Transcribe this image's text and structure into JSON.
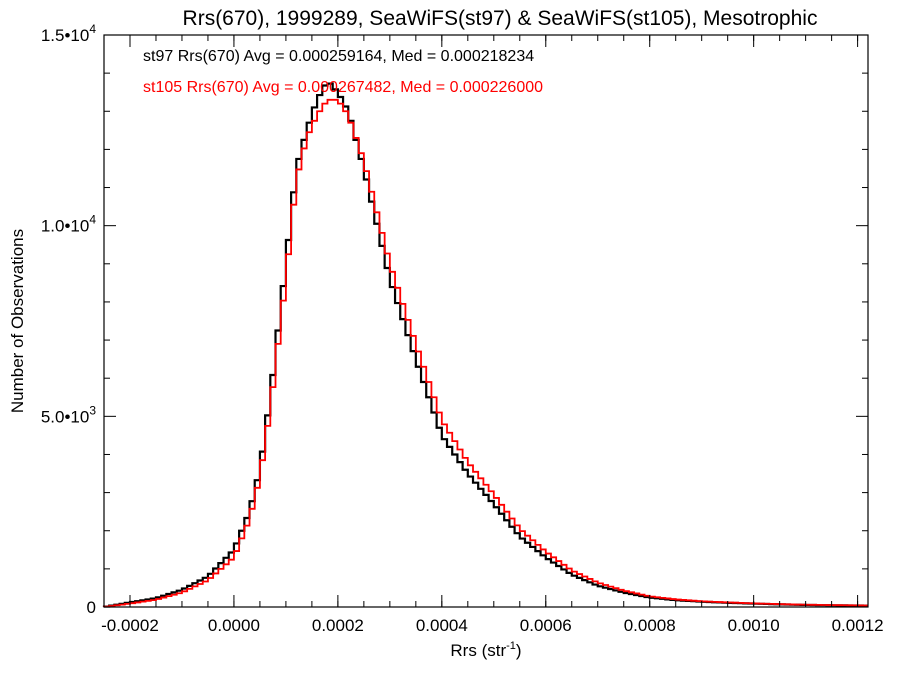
{
  "chart_data": {
    "type": "histogram",
    "title": "Rrs(670), 1999289, SeaWiFS(st97) & SeaWiFS(st105), Mesotrophic",
    "xlabel_main": "Rrs (str",
    "xlabel_sup": "-1",
    "xlabel_end": ")",
    "ylabel": "Number of Observations",
    "xlim": [
      -0.00025,
      0.00122
    ],
    "ylim": [
      0,
      15000
    ],
    "grid": false,
    "x_ticks": [
      {
        "value": -0.0002,
        "label": "-0.0002"
      },
      {
        "value": 0.0,
        "label": "0.0000"
      },
      {
        "value": 0.0002,
        "label": "0.0002"
      },
      {
        "value": 0.0004,
        "label": "0.0004"
      },
      {
        "value": 0.0006,
        "label": "0.0006"
      },
      {
        "value": 0.0008,
        "label": "0.0008"
      },
      {
        "value": 0.001,
        "label": "0.0010"
      },
      {
        "value": 0.0012,
        "label": "0.0012"
      }
    ],
    "y_ticks": [
      {
        "value": 0,
        "base": "0",
        "exp": ""
      },
      {
        "value": 5000,
        "base": "5.0•10",
        "exp": "3"
      },
      {
        "value": 10000,
        "base": "1.0•10",
        "exp": "4"
      },
      {
        "value": 15000,
        "base": "1.5•10",
        "exp": "4"
      }
    ],
    "annotations": [
      {
        "text": "st97 Rrs(670) Avg = 0.000259164, Med = 0.000218234",
        "color": "#000000"
      },
      {
        "text": "st105 Rrs(670) Avg = 0.000267482, Med = 0.000226000",
        "color": "#ff0000"
      }
    ],
    "bin_width": 1e-05,
    "series": [
      {
        "name": "st97",
        "color": "#000000",
        "points": [
          [
            -0.00025,
            0
          ],
          [
            -0.0002,
            120
          ],
          [
            -0.00015,
            230
          ],
          [
            -0.0001,
            450
          ],
          [
            -5e-05,
            800
          ],
          [
            0.0,
            1500
          ],
          [
            3e-05,
            2500
          ],
          [
            5e-05,
            3600
          ],
          [
            7e-05,
            5500
          ],
          [
            0.0001,
            9000
          ],
          [
            0.00012,
            11500
          ],
          [
            0.00014,
            12500
          ],
          [
            0.00016,
            13300
          ],
          [
            0.00018,
            13800
          ],
          [
            0.0002,
            13500
          ],
          [
            0.00022,
            13000
          ],
          [
            0.00025,
            11500
          ],
          [
            0.0003,
            8600
          ],
          [
            0.00035,
            6500
          ],
          [
            0.0004,
            4500
          ],
          [
            0.00045,
            3500
          ],
          [
            0.0005,
            2700
          ],
          [
            0.00055,
            1850
          ],
          [
            0.0006,
            1300
          ],
          [
            0.00065,
            850
          ],
          [
            0.0007,
            560
          ],
          [
            0.00075,
            380
          ],
          [
            0.0008,
            250
          ],
          [
            0.00085,
            180
          ],
          [
            0.0009,
            140
          ],
          [
            0.00095,
            110
          ],
          [
            0.001,
            90
          ],
          [
            0.00105,
            70
          ],
          [
            0.0011,
            55
          ],
          [
            0.00115,
            45
          ],
          [
            0.0012,
            40
          ],
          [
            0.00122,
            35
          ]
        ]
      },
      {
        "name": "st105",
        "color": "#ff0000",
        "points": [
          [
            -0.00025,
            0
          ],
          [
            -0.0002,
            90
          ],
          [
            -0.00015,
            190
          ],
          [
            -0.0001,
            380
          ],
          [
            -5e-05,
            700
          ],
          [
            0.0,
            1300
          ],
          [
            3e-05,
            2300
          ],
          [
            5e-05,
            3400
          ],
          [
            7e-05,
            5200
          ],
          [
            0.0001,
            8600
          ],
          [
            0.00012,
            11200
          ],
          [
            0.00014,
            12300
          ],
          [
            0.00016,
            12900
          ],
          [
            0.00018,
            13300
          ],
          [
            0.0002,
            13300
          ],
          [
            0.00022,
            12900
          ],
          [
            0.00025,
            11700
          ],
          [
            0.0003,
            9000
          ],
          [
            0.00035,
            6900
          ],
          [
            0.0004,
            4900
          ],
          [
            0.00045,
            3800
          ],
          [
            0.0005,
            2950
          ],
          [
            0.00055,
            2050
          ],
          [
            0.0006,
            1450
          ],
          [
            0.00065,
            960
          ],
          [
            0.0007,
            640
          ],
          [
            0.00075,
            430
          ],
          [
            0.0008,
            280
          ],
          [
            0.00085,
            200
          ],
          [
            0.0009,
            150
          ],
          [
            0.00095,
            120
          ],
          [
            0.001,
            95
          ],
          [
            0.00105,
            75
          ],
          [
            0.0011,
            60
          ],
          [
            0.00115,
            50
          ],
          [
            0.0012,
            42
          ],
          [
            0.00122,
            38
          ]
        ]
      }
    ]
  }
}
